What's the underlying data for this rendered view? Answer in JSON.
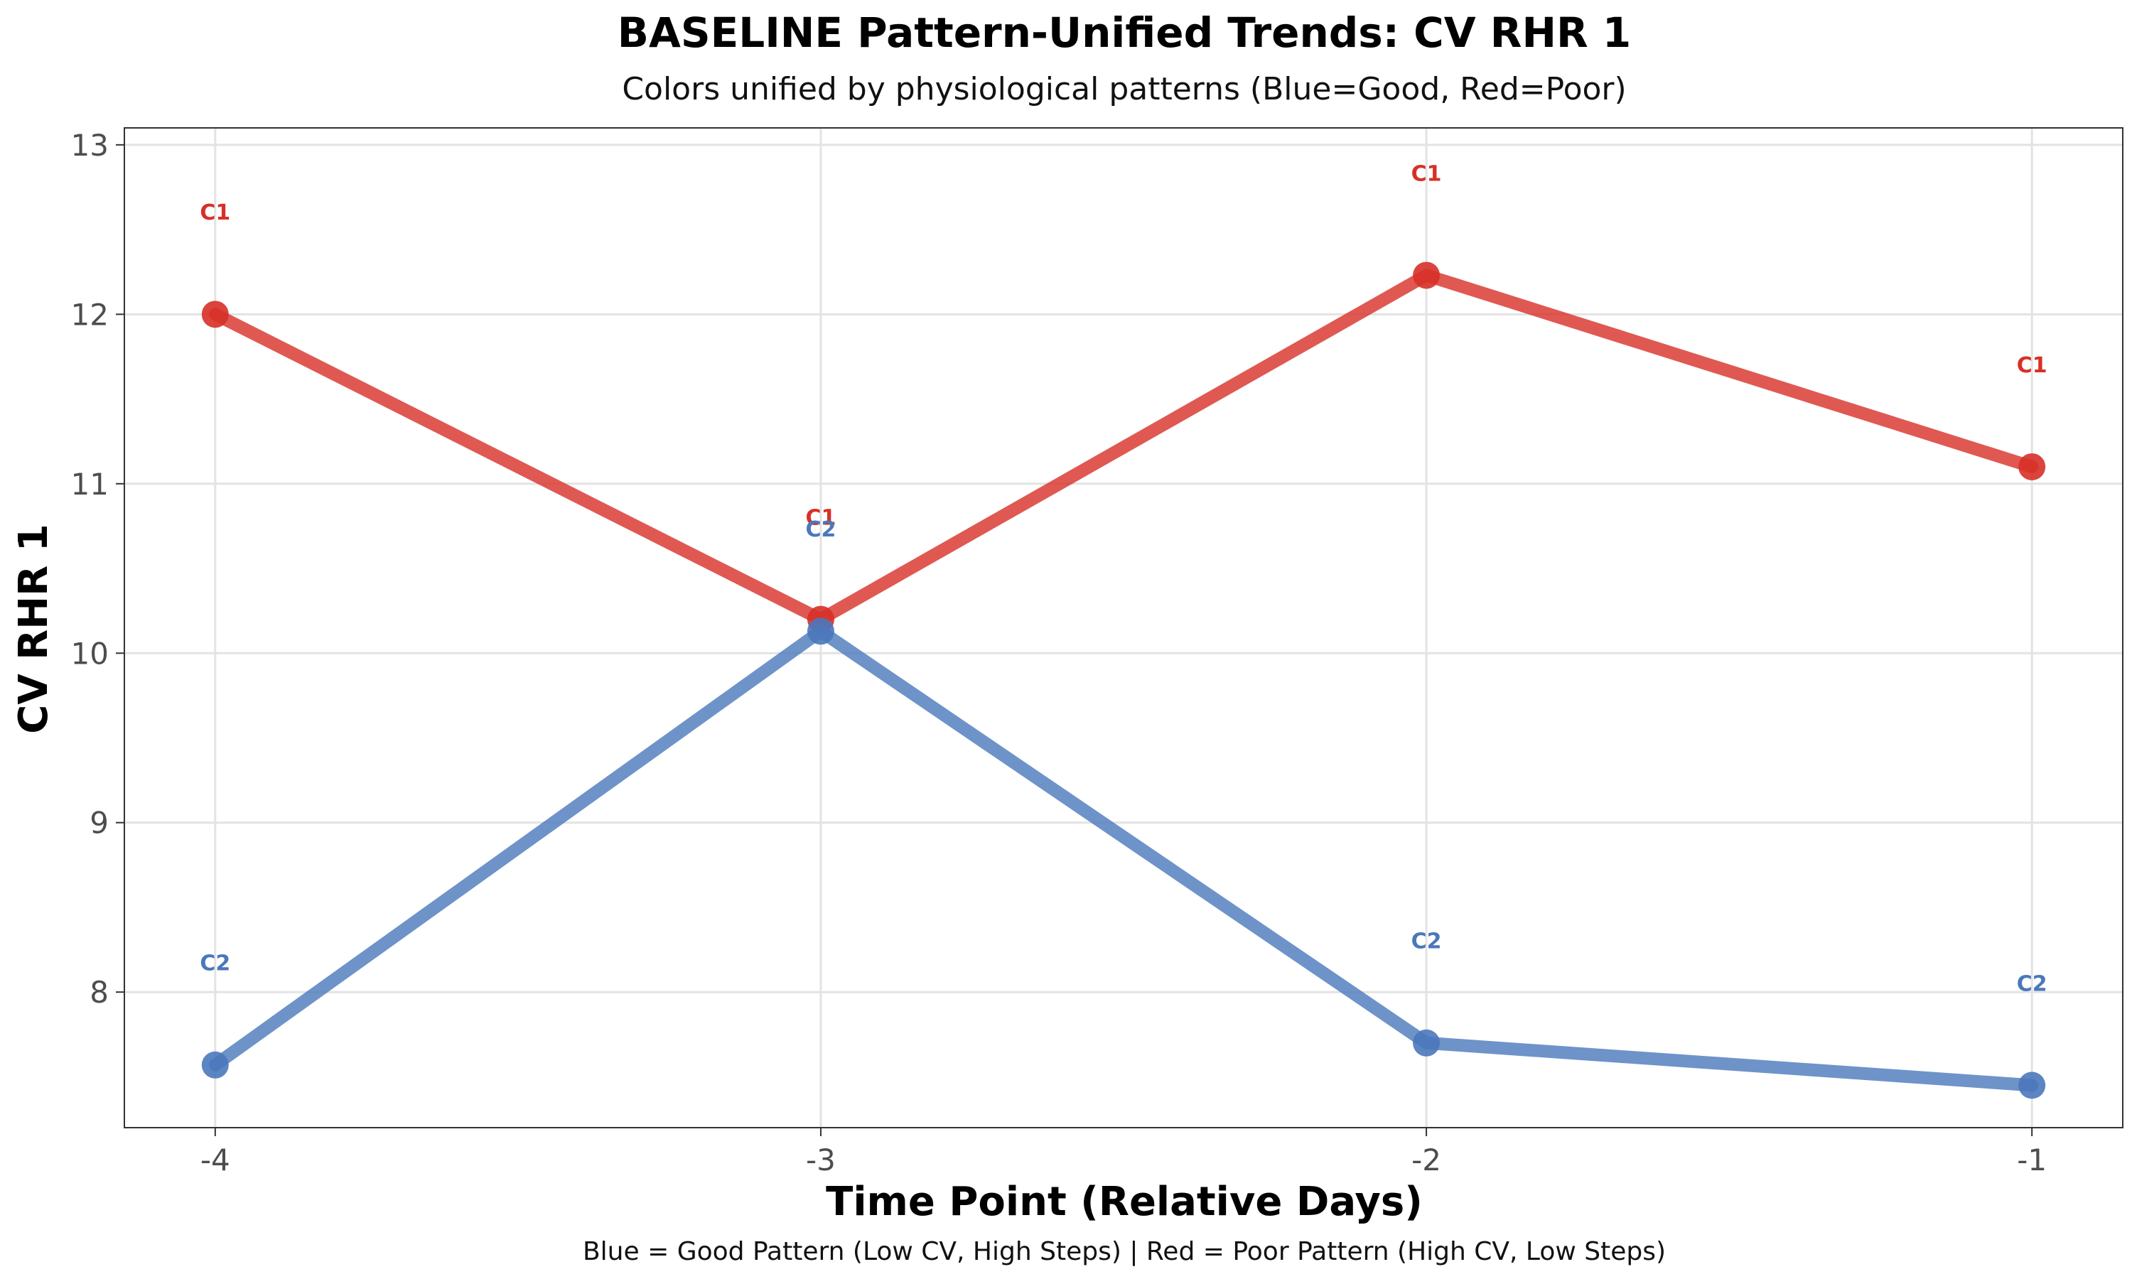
{
  "chart_data": {
    "type": "line",
    "title": "BASELINE Pattern-Unified Trends: CV RHR 1",
    "subtitle": "Colors unified by physiological patterns (Blue=Good, Red=Poor)",
    "xlabel": "Time Point (Relative Days)",
    "ylabel": "CV RHR 1",
    "caption": "Blue = Good Pattern (Low CV, High Steps) | Red = Poor Pattern (High CV, Low Steps)",
    "x": [
      -4,
      -3,
      -2,
      -1
    ],
    "x_tick_labels": [
      "-4",
      "-3",
      "-2",
      "-1"
    ],
    "y_ticks": [
      8,
      9,
      10,
      11,
      12,
      13
    ],
    "xlim": [
      -4.15,
      -0.85
    ],
    "ylim": [
      7.2,
      13.1
    ],
    "grid": true,
    "series": [
      {
        "label": "C1",
        "color": "#d73027",
        "values": [
          12.0,
          10.2,
          12.23,
          11.1
        ]
      },
      {
        "label": "C2",
        "color": "#4a78bb",
        "values": [
          7.57,
          10.13,
          7.7,
          7.45
        ]
      }
    ]
  }
}
